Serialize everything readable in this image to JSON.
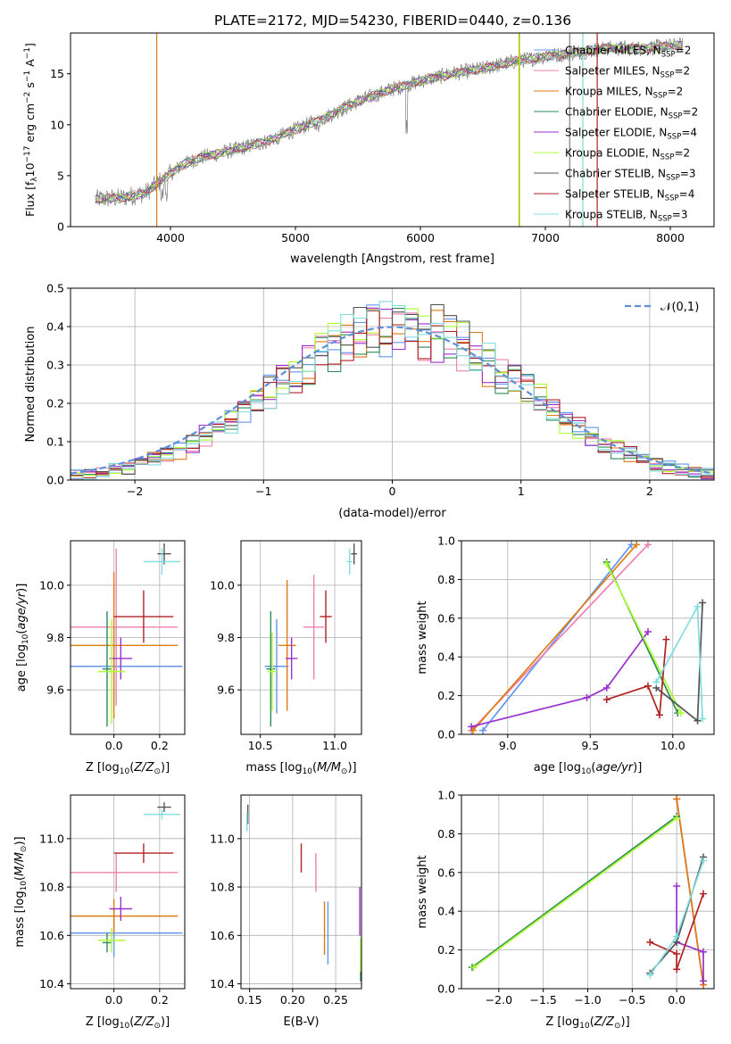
{
  "figure_title": "PLATE=2172, MJD=54230, FIBERID=0440, z=0.136",
  "colors": {
    "Chabrier MILES": "#6495ED",
    "Salpeter MILES": "#F07FB0",
    "Kroupa MILES": "#E07B14",
    "Chabrier ELODIE": "#2E8B57",
    "Salpeter ELODIE": "#9932CC",
    "Kroupa ELODIE": "#ADFF2F",
    "Chabrier STELIB": "#555555",
    "Salpeter STELIB": "#B22222",
    "Kroupa STELIB": "#80DDE0",
    "normal": "#5B8FD6"
  },
  "chart_data": [
    {
      "id": "spectrum",
      "type": "line",
      "title": "PLATE=2172, MJD=54230, FIBERID=0440, z=0.136",
      "xlabel": "wavelength [Angstrom, rest frame]",
      "ylabel": "Flux [f_λ 10^-17 erg cm^-2 s^-1 A^-1]",
      "xlim": [
        3200,
        8350
      ],
      "ylim": [
        0,
        19
      ],
      "xticks": [
        4000,
        5000,
        6000,
        7000,
        8000
      ],
      "yticks": [
        0,
        5,
        10,
        15
      ],
      "legend_position": "upper right",
      "legend": [
        {
          "label": "Chabrier MILES, N_SSP=2"
        },
        {
          "label": "Salpeter MILES, N_SSP=2"
        },
        {
          "label": "Kroupa MILES, N_SSP=2"
        },
        {
          "label": "Chabrier ELODIE, N_SSP=2"
        },
        {
          "label": "Salpeter ELODIE, N_SSP=4"
        },
        {
          "label": "Kroupa ELODIE, N_SSP=2"
        },
        {
          "label": "Chabrier STELIB, N_SSP=3"
        },
        {
          "label": "Salpeter STELIB, N_SSP=4"
        },
        {
          "label": "Kroupa STELIB, N_SSP=3"
        }
      ],
      "spectrum_knots": [
        [
          3400,
          2.7
        ],
        [
          3600,
          2.8
        ],
        [
          3800,
          3.3
        ],
        [
          3900,
          4.3
        ],
        [
          4000,
          5.2
        ],
        [
          4100,
          6.1
        ],
        [
          4250,
          6.8
        ],
        [
          4500,
          7.5
        ],
        [
          4750,
          8.3
        ],
        [
          5000,
          9.5
        ],
        [
          5250,
          10.8
        ],
        [
          5500,
          12.3
        ],
        [
          5750,
          13.4
        ],
        [
          6000,
          14.3
        ],
        [
          6250,
          15.0
        ],
        [
          6500,
          15.5
        ],
        [
          6750,
          16.2
        ],
        [
          7000,
          16.7
        ],
        [
          7250,
          17.1
        ],
        [
          7500,
          17.5
        ],
        [
          7750,
          17.5
        ],
        [
          8100,
          17.8
        ]
      ],
      "grid": false
    },
    {
      "id": "residuals",
      "type": "histogram",
      "xlabel": "(data-model)/error",
      "ylabel": "Normed distribution",
      "xlim": [
        -2.5,
        2.5
      ],
      "ylim": [
        0,
        0.5
      ],
      "xticks": [
        -2,
        -1,
        0,
        1,
        2
      ],
      "yticks": [
        0,
        0.1,
        0.2,
        0.3,
        0.4,
        0.5
      ],
      "bin_width": 0.1,
      "reference_curve": {
        "label": "𝒩(0,1)",
        "mean": 0,
        "sigma": 1
      },
      "grid": true
    },
    {
      "id": "age_vs_Z",
      "type": "errorbar",
      "xlabel": "Z [log10(Z/Z⊙)]",
      "ylabel": "age [log10(age/yr)]",
      "xlim": [
        -0.19,
        0.31
      ],
      "ylim": [
        9.43,
        10.17
      ],
      "xticks": [
        0.0,
        0.2
      ],
      "yticks": [
        9.6,
        9.8,
        10.0
      ],
      "points": [
        {
          "model": "Chabrier MILES",
          "x": 0.0,
          "xerr": 0.3,
          "y": 9.69,
          "yerr": 0.15
        },
        {
          "model": "Salpeter MILES",
          "x": 0.01,
          "xerr": 0.27,
          "y": 9.84,
          "yerr": 0.3
        },
        {
          "model": "Kroupa MILES",
          "x": 0.0,
          "xerr": 0.28,
          "y": 9.77,
          "yerr": 0.28
        },
        {
          "model": "Chabrier ELODIE",
          "x": -0.03,
          "xerr": 0.02,
          "y": 9.68,
          "yerr": 0.22
        },
        {
          "model": "Salpeter ELODIE",
          "x": 0.03,
          "xerr": 0.05,
          "y": 9.72,
          "yerr": 0.08
        },
        {
          "model": "Kroupa ELODIE",
          "x": -0.01,
          "xerr": 0.06,
          "y": 9.67,
          "yerr": 0.2
        },
        {
          "model": "Chabrier STELIB",
          "x": 0.22,
          "xerr": 0.03,
          "y": 10.12,
          "yerr": 0.04
        },
        {
          "model": "Salpeter STELIB",
          "x": 0.13,
          "xerr": 0.13,
          "y": 9.88,
          "yerr": 0.1
        },
        {
          "model": "Kroupa STELIB",
          "x": 0.21,
          "xerr": 0.08,
          "y": 10.09,
          "yerr": 0.05
        }
      ],
      "grid": true
    },
    {
      "id": "age_vs_mass",
      "type": "errorbar",
      "xlabel": "mass [log10(M/M⊙)]",
      "ylabel": "",
      "xlim": [
        10.37,
        11.18
      ],
      "ylim": [
        9.43,
        10.17
      ],
      "xticks": [
        10.5,
        11.0
      ],
      "yticks": [
        9.6,
        9.8,
        10.0
      ],
      "points": [
        {
          "model": "Chabrier MILES",
          "x": 10.61,
          "xerr": 0.08,
          "y": 9.69,
          "yerr": 0.18
        },
        {
          "model": "Salpeter MILES",
          "x": 10.86,
          "xerr": 0.07,
          "y": 9.84,
          "yerr": 0.2
        },
        {
          "model": "Kroupa MILES",
          "x": 10.68,
          "xerr": 0.06,
          "y": 9.77,
          "yerr": 0.25
        },
        {
          "model": "Chabrier ELODIE",
          "x": 10.57,
          "xerr": 0.03,
          "y": 9.68,
          "yerr": 0.22
        },
        {
          "model": "Salpeter ELODIE",
          "x": 10.71,
          "xerr": 0.04,
          "y": 9.72,
          "yerr": 0.08
        },
        {
          "model": "Kroupa ELODIE",
          "x": 10.58,
          "xerr": 0.03,
          "y": 9.67,
          "yerr": 0.15
        },
        {
          "model": "Chabrier STELIB",
          "x": 11.13,
          "xerr": 0.02,
          "y": 10.12,
          "yerr": 0.04
        },
        {
          "model": "Salpeter STELIB",
          "x": 10.94,
          "xerr": 0.04,
          "y": 9.88,
          "yerr": 0.1
        },
        {
          "model": "Kroupa STELIB",
          "x": 11.1,
          "xerr": 0.02,
          "y": 10.09,
          "yerr": 0.05
        }
      ],
      "grid": true
    },
    {
      "id": "weight_vs_age",
      "type": "line",
      "xlabel": "age [log10(age/yr)]",
      "ylabel": "mass weight",
      "xlim": [
        8.72,
        10.25
      ],
      "ylim": [
        0,
        1
      ],
      "xticks": [
        9.0,
        9.5,
        10.0
      ],
      "yticks": [
        0.0,
        0.2,
        0.4,
        0.6,
        0.8,
        1.0
      ],
      "series": [
        {
          "model": "Chabrier MILES",
          "x": [
            8.85,
            9.75
          ],
          "y": [
            0.02,
            0.98
          ]
        },
        {
          "model": "Salpeter MILES",
          "x": [
            8.78,
            9.85
          ],
          "y": [
            0.02,
            0.98
          ]
        },
        {
          "model": "Kroupa MILES",
          "x": [
            8.79,
            9.78
          ],
          "y": [
            0.02,
            0.98
          ]
        },
        {
          "model": "Chabrier ELODIE",
          "x": [
            9.6,
            10.03
          ],
          "y": [
            0.89,
            0.11
          ]
        },
        {
          "model": "Salpeter ELODIE",
          "x": [
            8.78,
            9.48,
            9.6,
            9.85
          ],
          "y": [
            0.04,
            0.19,
            0.24,
            0.53
          ]
        },
        {
          "model": "Kroupa ELODIE",
          "x": [
            9.6,
            10.05
          ],
          "y": [
            0.88,
            0.11
          ]
        },
        {
          "model": "Chabrier STELIB",
          "x": [
            9.9,
            10.15,
            10.18
          ],
          "y": [
            0.24,
            0.07,
            0.68
          ]
        },
        {
          "model": "Salpeter STELIB",
          "x": [
            9.6,
            9.85,
            9.92,
            9.96
          ],
          "y": [
            0.18,
            0.25,
            0.1,
            0.49
          ]
        },
        {
          "model": "Kroupa STELIB",
          "x": [
            9.9,
            10.15,
            10.18
          ],
          "y": [
            0.27,
            0.66,
            0.08
          ]
        }
      ],
      "grid": true
    },
    {
      "id": "mass_vs_Z",
      "type": "errorbar",
      "xlabel": "Z [log10(Z/Z⊙)]",
      "ylabel": "mass [log10(M/M⊙)]",
      "xlim": [
        -0.19,
        0.31
      ],
      "ylim": [
        10.38,
        11.18
      ],
      "xticks": [
        0.0,
        0.2
      ],
      "yticks": [
        10.4,
        10.6,
        10.8,
        11.0
      ],
      "points": [
        {
          "model": "Chabrier MILES",
          "x": 0.0,
          "xerr": 0.3,
          "y": 10.61,
          "yerr": 0.1
        },
        {
          "model": "Salpeter MILES",
          "x": 0.01,
          "xerr": 0.27,
          "y": 10.86,
          "yerr": 0.08
        },
        {
          "model": "Kroupa MILES",
          "x": 0.0,
          "xerr": 0.28,
          "y": 10.68,
          "yerr": 0.07
        },
        {
          "model": "Chabrier ELODIE",
          "x": -0.03,
          "xerr": 0.02,
          "y": 10.57,
          "yerr": 0.04
        },
        {
          "model": "Salpeter ELODIE",
          "x": 0.03,
          "xerr": 0.05,
          "y": 10.71,
          "yerr": 0.05
        },
        {
          "model": "Kroupa ELODIE",
          "x": -0.01,
          "xerr": 0.06,
          "y": 10.58,
          "yerr": 0.05
        },
        {
          "model": "Chabrier STELIB",
          "x": 0.22,
          "xerr": 0.03,
          "y": 11.13,
          "yerr": 0.02
        },
        {
          "model": "Salpeter STELIB",
          "x": 0.13,
          "xerr": 0.13,
          "y": 10.94,
          "yerr": 0.04
        },
        {
          "model": "Kroupa STELIB",
          "x": 0.21,
          "xerr": 0.08,
          "y": 11.1,
          "yerr": 0.02
        }
      ],
      "grid": true
    },
    {
      "id": "mass_vs_EBV",
      "type": "errorbar",
      "xlabel": "E(B-V)",
      "ylabel": "",
      "xlim": [
        0.14,
        0.28
      ],
      "ylim": [
        10.38,
        11.18
      ],
      "xticks": [
        0.15,
        0.2,
        0.25
      ],
      "yticks": [
        10.4,
        10.6,
        10.8,
        11.0
      ],
      "points": [
        {
          "model": "Chabrier MILES",
          "x": 0.241,
          "xerr": 0.0,
          "y": 10.61,
          "yerr": 0.13
        },
        {
          "model": "Salpeter MILES",
          "x": 0.227,
          "xerr": 0.0,
          "y": 10.86,
          "yerr": 0.08
        },
        {
          "model": "Kroupa MILES",
          "x": 0.237,
          "xerr": 0.0,
          "y": 10.63,
          "yerr": 0.11
        },
        {
          "model": "Chabrier ELODIE",
          "x": 0.279,
          "xerr": 0.0,
          "y": 10.45,
          "yerr": 0.04
        },
        {
          "model": "Salpeter ELODIE",
          "x": 0.278,
          "xerr": 0.0,
          "y": 10.7,
          "yerr": 0.1
        },
        {
          "model": "Kroupa ELODIE",
          "x": 0.279,
          "xerr": 0.0,
          "y": 10.52,
          "yerr": 0.07
        },
        {
          "model": "Chabrier STELIB",
          "x": 0.148,
          "xerr": 0.0,
          "y": 11.1,
          "yerr": 0.04
        },
        {
          "model": "Salpeter STELIB",
          "x": 0.21,
          "xerr": 0.0,
          "y": 10.92,
          "yerr": 0.06
        },
        {
          "model": "Kroupa STELIB",
          "x": 0.147,
          "xerr": 0.0,
          "y": 11.07,
          "yerr": 0.04
        }
      ],
      "grid": true
    },
    {
      "id": "weight_vs_Z",
      "type": "line",
      "xlabel": "Z [log10(Z/Z⊙)]",
      "ylabel": "mass weight",
      "xlim": [
        -2.42,
        0.42
      ],
      "ylim": [
        0,
        1
      ],
      "xticks": [
        -2.0,
        -1.5,
        -1.0,
        -0.5,
        0.0
      ],
      "yticks": [
        0.0,
        0.2,
        0.4,
        0.6,
        0.8,
        1.0
      ],
      "series": [
        {
          "model": "Chabrier MILES",
          "x": [
            0.0,
            0.3
          ],
          "y": [
            0.98,
            0.02
          ]
        },
        {
          "model": "Salpeter MILES",
          "x": [
            0.0,
            0.3
          ],
          "y": [
            0.98,
            0.02
          ]
        },
        {
          "model": "Kroupa MILES",
          "x": [
            0.0,
            0.3
          ],
          "y": [
            0.98,
            0.02
          ]
        },
        {
          "model": "Chabrier ELODIE",
          "x": [
            -2.3,
            0.0
          ],
          "y": [
            0.11,
            0.89
          ]
        },
        {
          "model": "Salpeter ELODIE",
          "x": [
            0.0,
            0.0,
            0.3,
            0.3
          ],
          "y": [
            0.53,
            0.24,
            0.19,
            0.04
          ]
        },
        {
          "model": "Kroupa ELODIE",
          "x": [
            -2.28,
            0.0
          ],
          "y": [
            0.11,
            0.88
          ]
        },
        {
          "model": "Chabrier STELIB",
          "x": [
            -0.3,
            0.0,
            0.3
          ],
          "y": [
            0.08,
            0.24,
            0.68
          ]
        },
        {
          "model": "Salpeter STELIB",
          "x": [
            -0.3,
            0.0,
            0.0,
            0.3
          ],
          "y": [
            0.24,
            0.18,
            0.1,
            0.49
          ]
        },
        {
          "model": "Kroupa STELIB",
          "x": [
            -0.3,
            0.0,
            0.3
          ],
          "y": [
            0.07,
            0.27,
            0.66
          ]
        }
      ],
      "grid": true
    }
  ]
}
